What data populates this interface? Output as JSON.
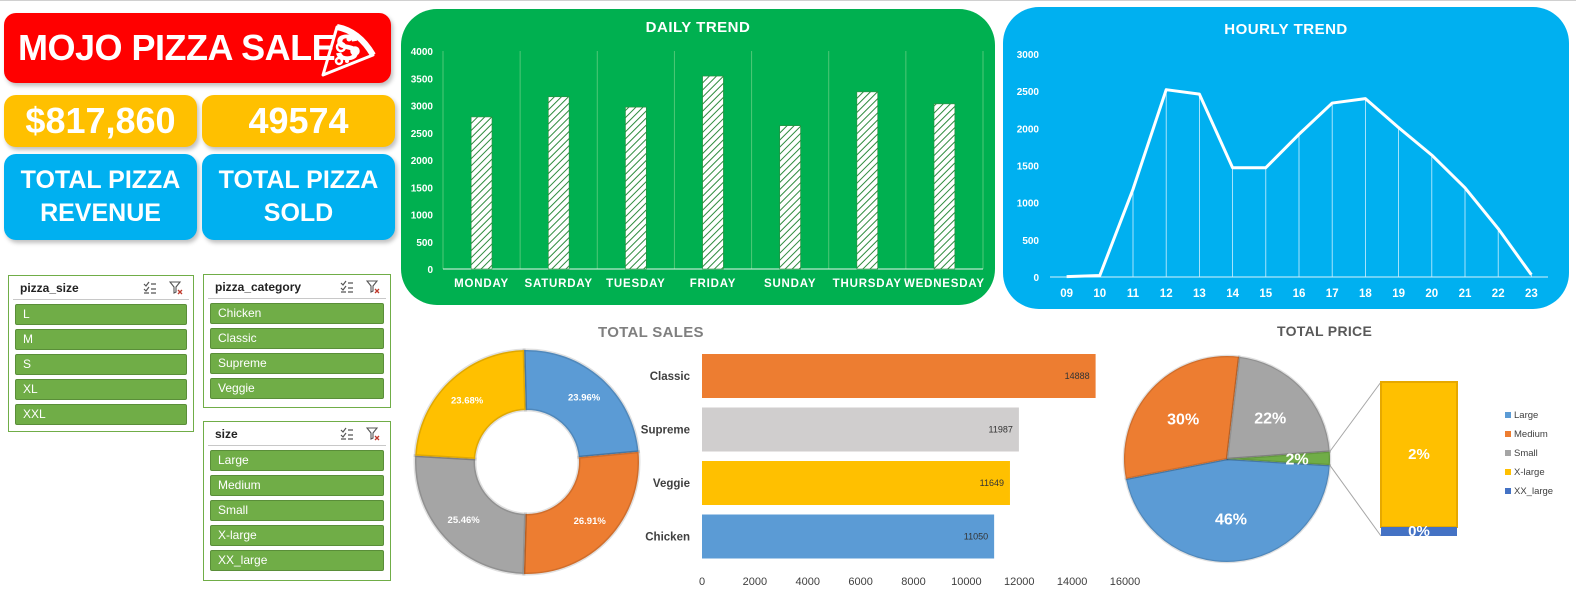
{
  "dashboard": {
    "title": "MOJO PIZZA SALES",
    "kpis": [
      {
        "value": "$817,860",
        "label": "TOTAL PIZZA REVENUE"
      },
      {
        "value": "49574",
        "label": "TOTAL PIZZA SOLD"
      }
    ],
    "colors": {
      "red": "#ff0000",
      "yellow": "#ffc000",
      "blue": "#00b0f0",
      "green": "#00b050",
      "slicer_green": "#70ad47",
      "orange": "#ed7d31",
      "gray": "#a5a5a5",
      "steel": "#5b9bd5",
      "navy": "#4472c4",
      "light_gray": "#d0cece"
    }
  },
  "slicers": [
    {
      "title": "pizza_size",
      "items": [
        "L",
        "M",
        "S",
        "XL",
        "XXL"
      ]
    },
    {
      "title": "pizza_category",
      "items": [
        "Chicken",
        "Classic",
        "Supreme",
        "Veggie"
      ]
    },
    {
      "title": "size",
      "items": [
        "Large",
        "Medium",
        "Small",
        "X-large",
        "XX_large"
      ]
    }
  ],
  "chart_data": [
    {
      "type": "bar",
      "title": "DAILY TREND",
      "categories": [
        "MONDAY",
        "SATURDAY",
        "TUESDAY",
        "FRIDAY",
        "SUNDAY",
        "THURSDAY",
        "WEDNESDAY"
      ],
      "values": [
        2790,
        3160,
        2970,
        3540,
        2630,
        3250,
        3030
      ],
      "ylim": [
        0,
        4000
      ],
      "yticks": [
        "0",
        "500",
        "1000",
        "1500",
        "2000",
        "2500",
        "3000",
        "3500",
        "4000"
      ],
      "grid": "vertical",
      "legend": "none"
    },
    {
      "type": "area",
      "title": "HOURLY TREND",
      "x": [
        "09",
        "10",
        "11",
        "12",
        "13",
        "14",
        "15",
        "16",
        "17",
        "18",
        "19",
        "20",
        "21",
        "22",
        "23"
      ],
      "values": [
        5,
        20,
        1180,
        2520,
        2460,
        1470,
        1470,
        1920,
        2340,
        2400,
        2010,
        1640,
        1200,
        650,
        30
      ],
      "ylim": [
        0,
        3000
      ],
      "yticks": [
        "0",
        "500",
        "1000",
        "1500",
        "2000",
        "2500",
        "3000"
      ],
      "legend": "none"
    },
    {
      "type": "pie",
      "title": "TOTAL SALES",
      "donut": true,
      "labels": [
        "Classic",
        "Supreme",
        "Veggie",
        "Chicken"
      ],
      "display": [
        "26.91%",
        "25.46%",
        "23.68%",
        "23.96%"
      ],
      "values": [
        26.91,
        25.46,
        23.68,
        23.96
      ],
      "colors": [
        "#ed7d31",
        "#a5a5a5",
        "#ffc000",
        "#5b9bd5"
      ]
    },
    {
      "type": "bar",
      "orientation": "horizontal",
      "categories": [
        "Classic",
        "Supreme",
        "Veggie",
        "Chicken"
      ],
      "values": [
        14888,
        11987,
        11649,
        11050
      ],
      "colors": [
        "#ed7d31",
        "#d0cece",
        "#ffc000",
        "#5b9bd5"
      ],
      "xlim": [
        0,
        16000
      ],
      "xticks": [
        "0",
        "2000",
        "4000",
        "6000",
        "8000",
        "10000",
        "12000",
        "14000",
        "16000"
      ]
    },
    {
      "type": "pie",
      "title": "TOTAL PRICE",
      "labels": [
        "Large",
        "Medium",
        "Small",
        "X-large",
        "XX_large"
      ],
      "display": [
        "46%",
        "30%",
        "22%",
        "2%",
        "0%"
      ],
      "values": [
        46,
        30,
        22,
        2,
        0.1
      ],
      "colors": [
        "#5b9bd5",
        "#ed7d31",
        "#a5a5a5",
        "#ffc000",
        "#4472c4"
      ],
      "legend": "right"
    }
  ]
}
